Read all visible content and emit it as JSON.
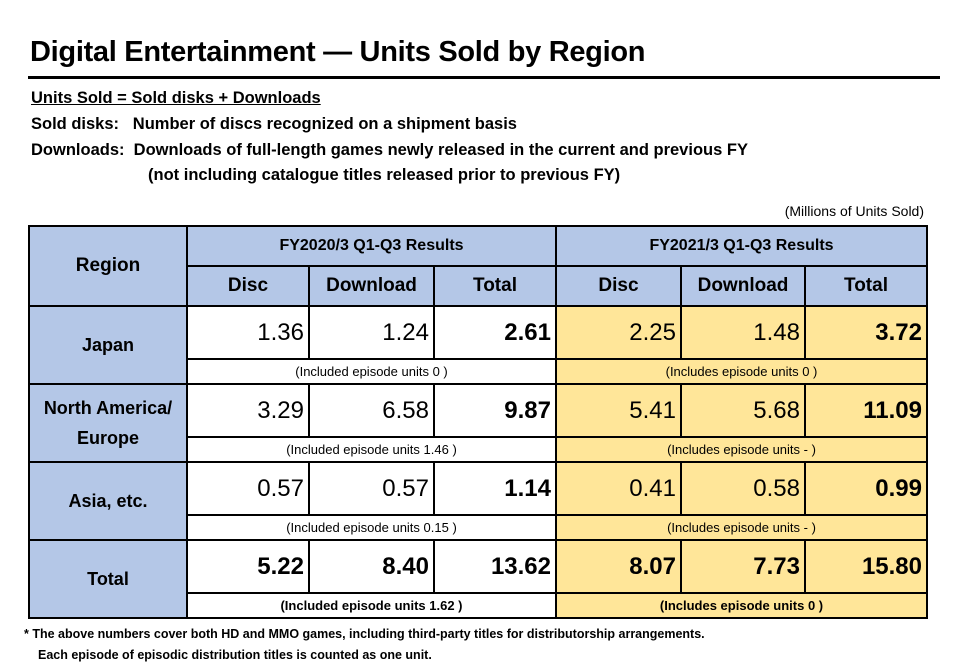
{
  "title": "Digital Entertainment — Units Sold by Region",
  "definitions": {
    "formula": "Units Sold = Sold disks + Downloads",
    "disks_label": "Sold disks:",
    "disks_text": "Number of discs recognized on a shipment basis",
    "downloads_label": "Downloads:",
    "downloads_text": "Downloads of full-length games newly released in the current and previous FY",
    "downloads_text2": "(not including catalogue titles released prior to previous FY)"
  },
  "unit": "(Millions of Units Sold)",
  "table": {
    "region_header": "Region",
    "periods": [
      "FY2020/3 Q1-Q3 Results",
      "FY2021/3 Q1-Q3 Results"
    ],
    "columns": [
      "Disc",
      "Download",
      "Total",
      "Disc",
      "Download",
      "Total"
    ],
    "rows": [
      {
        "region": "Japan",
        "values": [
          "1.36",
          "1.24",
          "2.61",
          "2.25",
          "1.48",
          "3.72"
        ],
        "notes": [
          "(Included episode units 0 )",
          "(Includes episode units 0 )"
        ]
      },
      {
        "region": "North America/ Europe",
        "values": [
          "3.29",
          "6.58",
          "9.87",
          "5.41",
          "5.68",
          "11.09"
        ],
        "notes": [
          "(Included episode units 1.46 )",
          "(Includes episode units - )"
        ]
      },
      {
        "region": "Asia, etc.",
        "values": [
          "0.57",
          "0.57",
          "1.14",
          "0.41",
          "0.58",
          "0.99"
        ],
        "notes": [
          "(Included episode units 0.15 )",
          "(Includes episode units - )"
        ]
      },
      {
        "region": "Total",
        "values": [
          "5.22",
          "8.40",
          "13.62",
          "8.07",
          "7.73",
          "15.80"
        ],
        "notes": [
          "(Included episode units 1.62 )",
          "(Includes episode units 0 )"
        ]
      }
    ]
  },
  "footnotes": [
    "*  The above numbers cover both HD and MMO games, including third-party titles for distributorship arrangements.",
    "Each episode of episodic distribution titles is counted as one unit."
  ]
}
